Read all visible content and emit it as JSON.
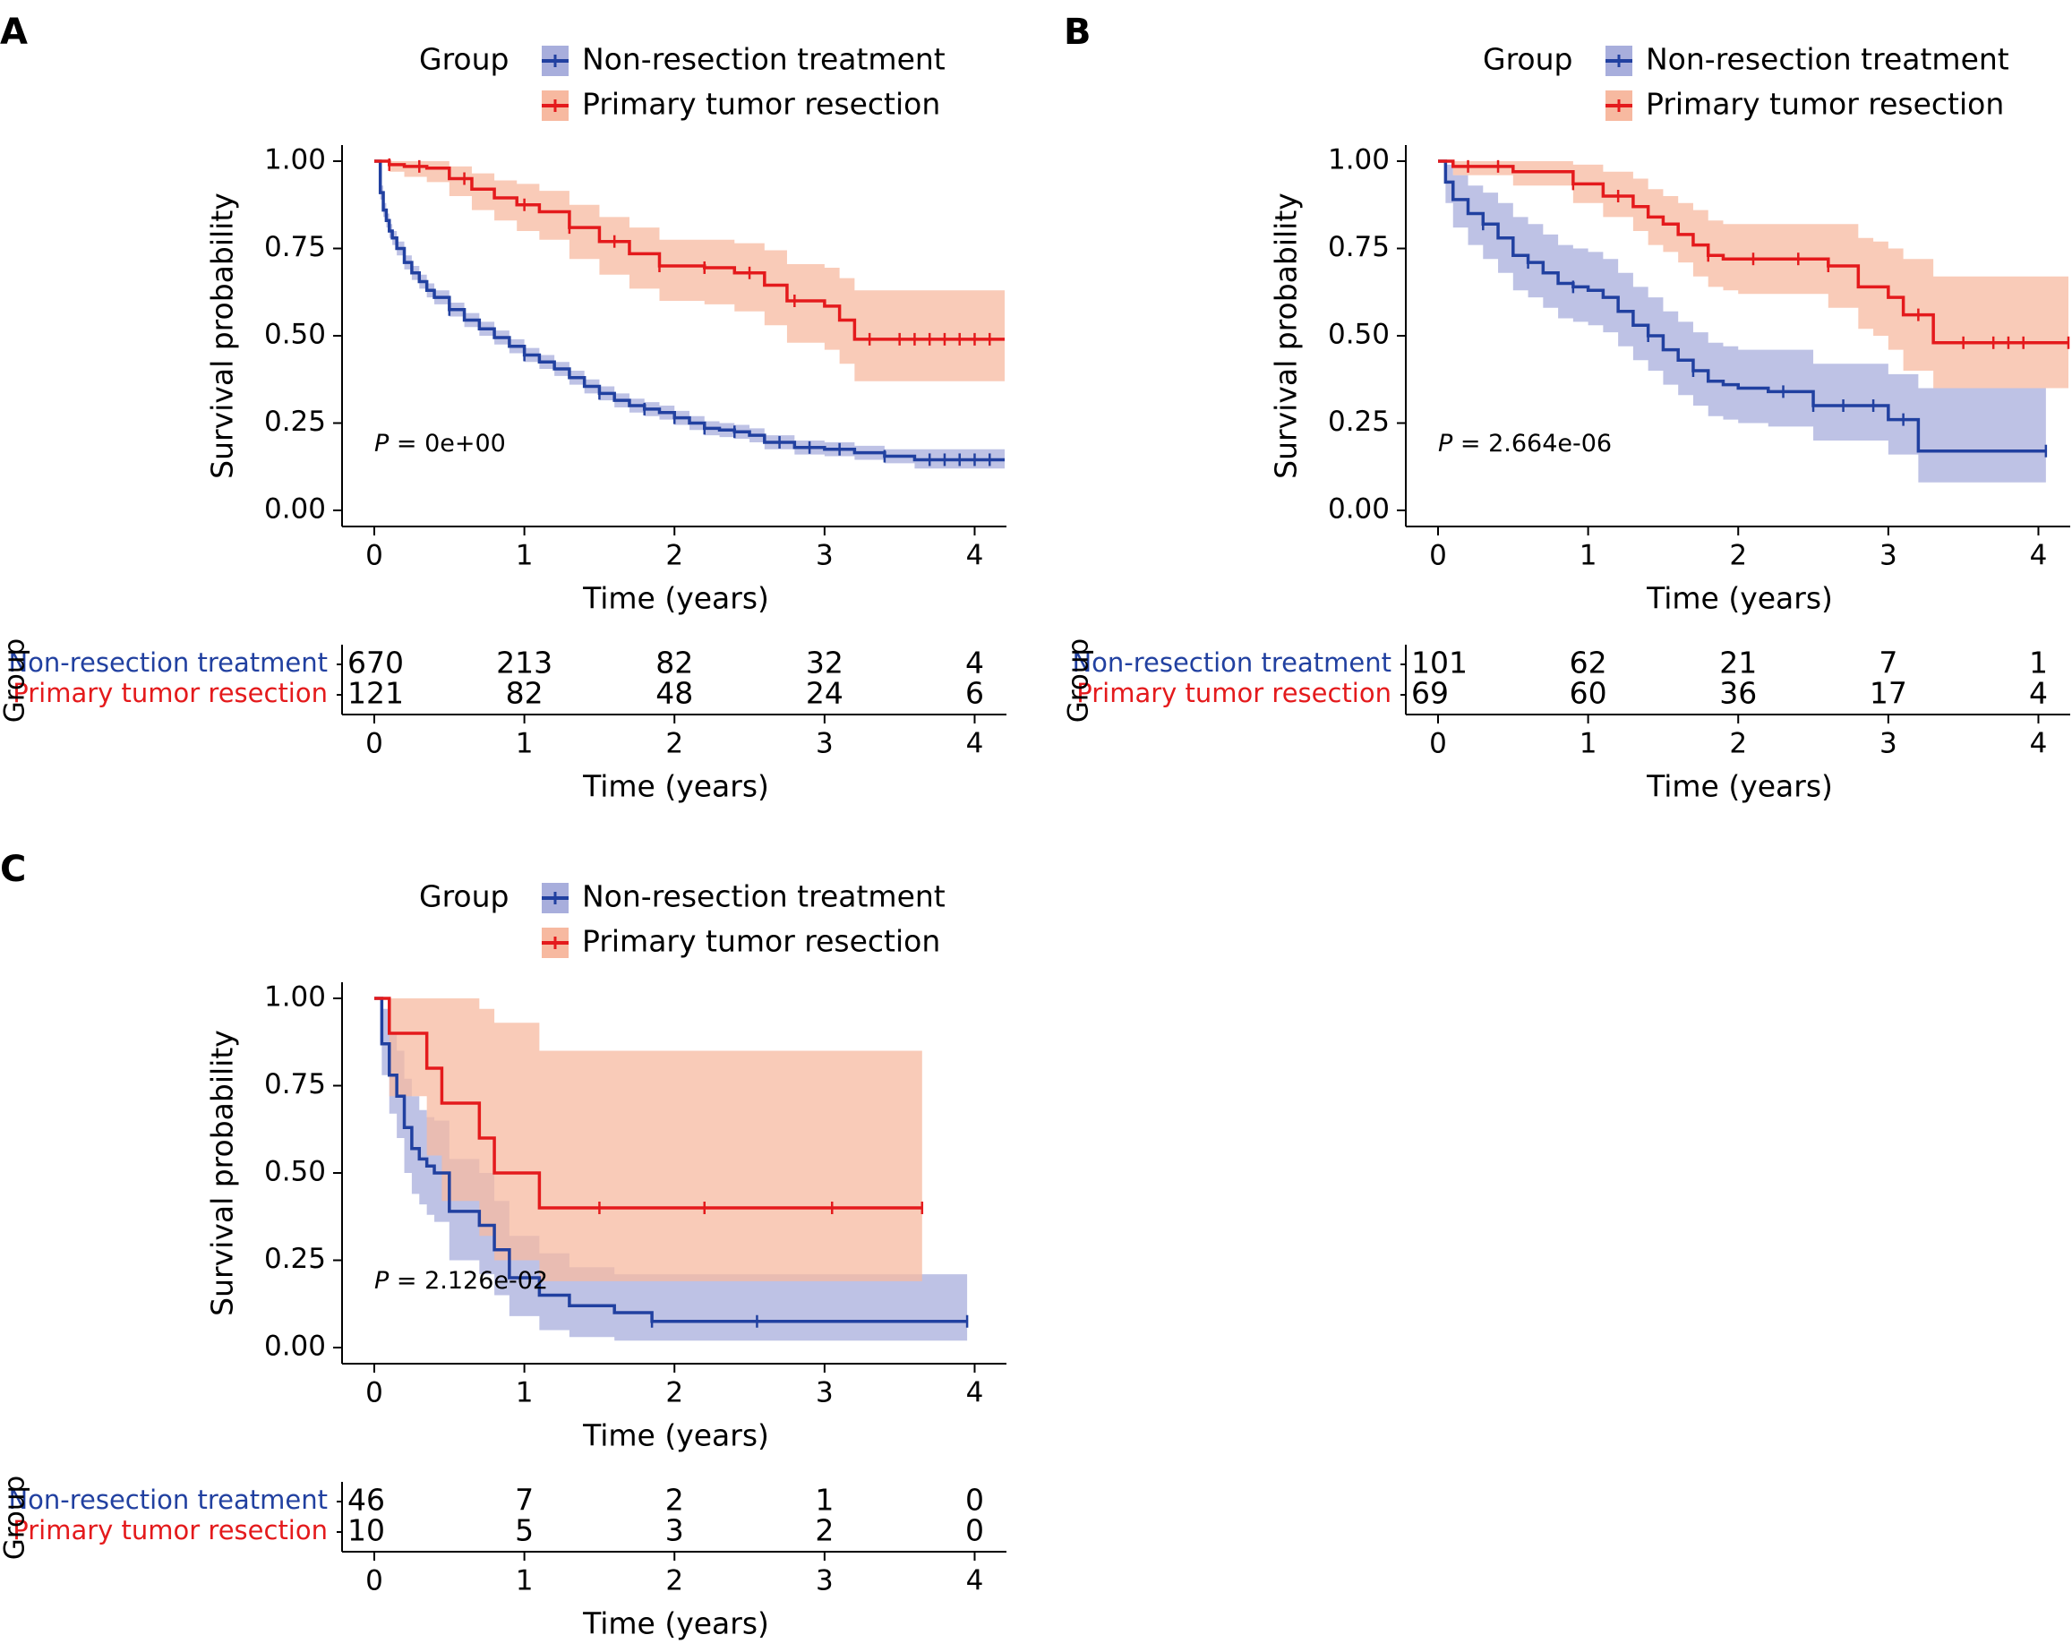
{
  "colors": {
    "non_resection": "#2140A0",
    "resection": "#E41A1C",
    "non_resection_band": "#A8AEDC",
    "resection_band": "#F7B9A0",
    "axis": "#000000"
  },
  "chart_data": [
    {
      "type": "line",
      "panel": "A",
      "legend": {
        "title": "Group",
        "placement": "top",
        "entries": [
          "Non-resection treatment",
          "Primary tumor resection"
        ]
      },
      "xlabel": "Time (years)",
      "ylabel": "Survival probability",
      "xlim": [
        0,
        4.2
      ],
      "ylim": [
        0,
        1
      ],
      "x_ticks": [
        "0",
        "1",
        "2",
        "3",
        "4"
      ],
      "y_ticks": [
        "0.00",
        "0.25",
        "0.50",
        "0.75",
        "1.00"
      ],
      "p_value": "= 0e+00",
      "p_label": "P",
      "series": [
        {
          "name": "Non-resection treatment",
          "x": [
            0,
            0.04,
            0.06,
            0.08,
            0.1,
            0.12,
            0.15,
            0.2,
            0.25,
            0.3,
            0.35,
            0.4,
            0.5,
            0.6,
            0.7,
            0.8,
            0.9,
            1.0,
            1.1,
            1.2,
            1.3,
            1.4,
            1.5,
            1.6,
            1.7,
            1.8,
            1.9,
            2.0,
            2.1,
            2.2,
            2.3,
            2.4,
            2.5,
            2.6,
            2.8,
            3.0,
            3.2,
            3.4,
            3.6,
            3.8,
            4.2
          ],
          "y": [
            1.0,
            0.91,
            0.86,
            0.83,
            0.8,
            0.78,
            0.75,
            0.71,
            0.68,
            0.655,
            0.63,
            0.61,
            0.575,
            0.545,
            0.52,
            0.495,
            0.47,
            0.445,
            0.425,
            0.405,
            0.38,
            0.355,
            0.335,
            0.315,
            0.3,
            0.29,
            0.28,
            0.265,
            0.25,
            0.235,
            0.23,
            0.225,
            0.215,
            0.195,
            0.18,
            0.175,
            0.165,
            0.155,
            0.145,
            0.145,
            0.145
          ],
          "lower": [
            1.0,
            0.89,
            0.84,
            0.81,
            0.78,
            0.76,
            0.73,
            0.69,
            0.66,
            0.635,
            0.61,
            0.59,
            0.555,
            0.525,
            0.5,
            0.475,
            0.45,
            0.425,
            0.405,
            0.385,
            0.36,
            0.335,
            0.315,
            0.295,
            0.28,
            0.27,
            0.26,
            0.245,
            0.23,
            0.215,
            0.21,
            0.205,
            0.195,
            0.175,
            0.16,
            0.155,
            0.145,
            0.135,
            0.12,
            0.12,
            0.12
          ],
          "upper": [
            1.0,
            0.93,
            0.88,
            0.85,
            0.82,
            0.8,
            0.77,
            0.73,
            0.7,
            0.675,
            0.65,
            0.63,
            0.595,
            0.565,
            0.54,
            0.515,
            0.49,
            0.465,
            0.445,
            0.425,
            0.4,
            0.375,
            0.355,
            0.335,
            0.32,
            0.31,
            0.3,
            0.285,
            0.27,
            0.255,
            0.25,
            0.245,
            0.235,
            0.215,
            0.2,
            0.195,
            0.185,
            0.175,
            0.175,
            0.175,
            0.175
          ],
          "censor_x": [
            0.5,
            1.0,
            1.5,
            1.8,
            2.0,
            2.2,
            2.4,
            2.7,
            2.9,
            3.1,
            3.4,
            3.7,
            3.8,
            3.9,
            4.0,
            4.1
          ]
        },
        {
          "name": "Primary tumor resection",
          "x": [
            0,
            0.1,
            0.2,
            0.35,
            0.5,
            0.65,
            0.8,
            0.95,
            1.1,
            1.3,
            1.5,
            1.7,
            1.9,
            2.2,
            2.4,
            2.6,
            2.75,
            3.0,
            3.1,
            3.2,
            3.5,
            4.2
          ],
          "y": [
            1.0,
            0.99,
            0.985,
            0.98,
            0.95,
            0.92,
            0.895,
            0.875,
            0.855,
            0.81,
            0.77,
            0.735,
            0.7,
            0.695,
            0.68,
            0.645,
            0.6,
            0.585,
            0.545,
            0.49,
            0.49,
            0.49
          ],
          "lower": [
            1.0,
            0.97,
            0.955,
            0.94,
            0.9,
            0.86,
            0.83,
            0.8,
            0.775,
            0.72,
            0.675,
            0.635,
            0.6,
            0.59,
            0.57,
            0.53,
            0.48,
            0.46,
            0.42,
            0.37,
            0.37,
            0.37
          ],
          "upper": [
            1.0,
            1.0,
            1.0,
            1.0,
            0.985,
            0.965,
            0.945,
            0.935,
            0.915,
            0.875,
            0.84,
            0.81,
            0.775,
            0.775,
            0.765,
            0.745,
            0.705,
            0.695,
            0.665,
            0.63,
            0.63,
            0.63
          ],
          "censor_x": [
            0.1,
            0.3,
            0.6,
            1.0,
            1.3,
            1.6,
            1.9,
            2.2,
            2.5,
            2.8,
            3.3,
            3.5,
            3.6,
            3.7,
            3.8,
            3.9,
            4.0,
            4.1
          ]
        }
      ],
      "risk_table": {
        "ylabel": "Group",
        "xlabel": "Time (years)",
        "rows": [
          {
            "name": "Non-resection treatment",
            "counts": [
              "670",
              "213",
              "82",
              "32",
              "4"
            ]
          },
          {
            "name": "Primary tumor resection",
            "counts": [
              "121",
              "82",
              "48",
              "24",
              "6"
            ]
          }
        ]
      }
    },
    {
      "type": "line",
      "panel": "B",
      "legend": {
        "title": "Group",
        "placement": "top",
        "entries": [
          "Non-resection treatment",
          "Primary tumor resection"
        ]
      },
      "xlabel": "Time (years)",
      "ylabel": "Survival probability",
      "xlim": [
        0,
        4.2
      ],
      "ylim": [
        0,
        1
      ],
      "x_ticks": [
        "0",
        "1",
        "2",
        "3",
        "4"
      ],
      "y_ticks": [
        "0.00",
        "0.25",
        "0.50",
        "0.75",
        "1.00"
      ],
      "p_value": "= 2.664e-06",
      "p_label": "P",
      "series": [
        {
          "name": "Non-resection treatment",
          "x": [
            0,
            0.05,
            0.1,
            0.2,
            0.3,
            0.4,
            0.5,
            0.6,
            0.7,
            0.8,
            0.9,
            1.0,
            1.1,
            1.2,
            1.3,
            1.4,
            1.5,
            1.6,
            1.7,
            1.8,
            1.9,
            2.0,
            2.2,
            2.5,
            2.8,
            3.0,
            3.2,
            3.3,
            4.05
          ],
          "y": [
            1.0,
            0.94,
            0.89,
            0.85,
            0.82,
            0.78,
            0.73,
            0.71,
            0.68,
            0.65,
            0.64,
            0.63,
            0.61,
            0.57,
            0.53,
            0.5,
            0.46,
            0.43,
            0.4,
            0.37,
            0.36,
            0.35,
            0.34,
            0.3,
            0.3,
            0.26,
            0.17,
            0.17,
            0.17
          ],
          "lower": [
            1.0,
            0.88,
            0.81,
            0.76,
            0.72,
            0.68,
            0.63,
            0.61,
            0.58,
            0.55,
            0.54,
            0.53,
            0.51,
            0.47,
            0.43,
            0.4,
            0.36,
            0.33,
            0.3,
            0.27,
            0.26,
            0.25,
            0.24,
            0.2,
            0.2,
            0.16,
            0.08,
            0.08,
            0.08
          ],
          "upper": [
            1.0,
            0.99,
            0.96,
            0.93,
            0.91,
            0.88,
            0.84,
            0.82,
            0.79,
            0.76,
            0.75,
            0.74,
            0.72,
            0.68,
            0.64,
            0.61,
            0.57,
            0.54,
            0.51,
            0.48,
            0.47,
            0.46,
            0.46,
            0.42,
            0.42,
            0.39,
            0.35,
            0.35,
            0.35
          ],
          "censor_x": [
            0.3,
            0.6,
            0.9,
            1.4,
            1.7,
            2.3,
            2.5,
            2.7,
            2.9,
            3.1,
            4.05
          ]
        },
        {
          "name": "Primary tumor resection",
          "x": [
            0,
            0.1,
            0.5,
            0.9,
            1.1,
            1.3,
            1.4,
            1.5,
            1.6,
            1.7,
            1.8,
            1.9,
            2.0,
            2.6,
            2.8,
            2.9,
            3.0,
            3.1,
            3.3,
            4.2
          ],
          "y": [
            1.0,
            0.985,
            0.97,
            0.935,
            0.9,
            0.87,
            0.84,
            0.82,
            0.79,
            0.76,
            0.73,
            0.72,
            0.72,
            0.7,
            0.64,
            0.64,
            0.61,
            0.56,
            0.48,
            0.48
          ],
          "lower": [
            1.0,
            0.96,
            0.93,
            0.88,
            0.84,
            0.8,
            0.76,
            0.74,
            0.71,
            0.67,
            0.64,
            0.63,
            0.62,
            0.58,
            0.52,
            0.5,
            0.46,
            0.4,
            0.35,
            0.35
          ],
          "upper": [
            1.0,
            1.0,
            1.0,
            0.99,
            0.97,
            0.95,
            0.92,
            0.9,
            0.88,
            0.86,
            0.83,
            0.82,
            0.82,
            0.82,
            0.78,
            0.77,
            0.75,
            0.72,
            0.67,
            0.67
          ],
          "censor_x": [
            0.2,
            0.4,
            0.9,
            1.2,
            1.8,
            2.1,
            2.4,
            2.6,
            3.2,
            3.5,
            3.7,
            3.8,
            3.9,
            4.2
          ]
        }
      ],
      "risk_table": {
        "ylabel": "Group",
        "xlabel": "Time (years)",
        "rows": [
          {
            "name": "Non-resection treatment",
            "counts": [
              "101",
              "62",
              "21",
              "7",
              "1"
            ]
          },
          {
            "name": "Primary tumor resection",
            "counts": [
              "69",
              "60",
              "36",
              "17",
              "4"
            ]
          }
        ]
      }
    },
    {
      "type": "line",
      "panel": "C",
      "legend": {
        "title": "Group",
        "placement": "top",
        "entries": [
          "Non-resection treatment",
          "Primary tumor resection"
        ]
      },
      "xlabel": "Time (years)",
      "ylabel": "Survival probability",
      "xlim": [
        0,
        4.2
      ],
      "ylim": [
        0,
        1
      ],
      "x_ticks": [
        "0",
        "1",
        "2",
        "3",
        "4"
      ],
      "y_ticks": [
        "0.00",
        "0.25",
        "0.50",
        "0.75",
        "1.00"
      ],
      "p_value": "= 2.126e-02",
      "p_label": "P",
      "series": [
        {
          "name": "Non-resection treatment",
          "x": [
            0,
            0.05,
            0.1,
            0.15,
            0.2,
            0.25,
            0.3,
            0.35,
            0.4,
            0.5,
            0.6,
            0.7,
            0.8,
            0.9,
            1.1,
            1.3,
            1.6,
            1.85,
            3.95
          ],
          "y": [
            1.0,
            0.87,
            0.78,
            0.72,
            0.63,
            0.57,
            0.54,
            0.52,
            0.5,
            0.39,
            0.39,
            0.35,
            0.28,
            0.2,
            0.15,
            0.12,
            0.1,
            0.075,
            0.075
          ],
          "lower": [
            1.0,
            0.78,
            0.67,
            0.6,
            0.5,
            0.44,
            0.41,
            0.38,
            0.36,
            0.25,
            0.25,
            0.21,
            0.15,
            0.09,
            0.05,
            0.03,
            0.02,
            0.02,
            0.02
          ],
          "upper": [
            1.0,
            0.97,
            0.9,
            0.85,
            0.77,
            0.72,
            0.68,
            0.66,
            0.65,
            0.54,
            0.54,
            0.5,
            0.42,
            0.32,
            0.27,
            0.23,
            0.21,
            0.21,
            0.21
          ],
          "censor_x": [
            1.85,
            2.55,
            3.95
          ]
        },
        {
          "name": "Primary tumor resection",
          "x": [
            0,
            0.1,
            0.35,
            0.45,
            0.7,
            0.8,
            1.1,
            3.65
          ],
          "y": [
            1.0,
            0.9,
            0.8,
            0.7,
            0.6,
            0.5,
            0.4,
            0.4
          ],
          "lower": [
            1.0,
            0.72,
            0.55,
            0.42,
            0.32,
            0.25,
            0.19,
            0.19
          ],
          "upper": [
            1.0,
            1.0,
            1.0,
            1.0,
            0.97,
            0.93,
            0.85,
            0.85
          ],
          "censor_x": [
            1.5,
            2.2,
            3.05,
            3.65
          ]
        }
      ],
      "risk_table": {
        "ylabel": "Group",
        "xlabel": "Time (years)",
        "rows": [
          {
            "name": "Non-resection treatment",
            "counts": [
              "46",
              "7",
              "2",
              "1",
              "0"
            ]
          },
          {
            "name": "Primary tumor resection",
            "counts": [
              "10",
              "5",
              "3",
              "2",
              "0"
            ]
          }
        ]
      }
    }
  ]
}
